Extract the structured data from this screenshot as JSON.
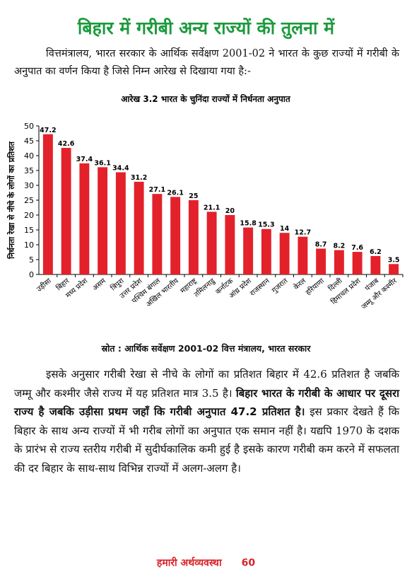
{
  "heading": "बिहार में गरीबी अन्य राज्यों की तुलना में",
  "intro": "वित्तमंत्रालय, भारत सरकार के आर्थिक सर्वेक्षण 2001-02 ने भारत के कुछ राज्यों में गरीबी के अनुपात का वर्णन किया है जिसे निम्न आरेख से दिखाया गया है:-",
  "chart_data": {
    "type": "bar",
    "title": "आरेख 3.2 भारत के चुनिंदा राज्यों में निर्धनता अनुपात",
    "y_label": "निर्धनता रेखा से नीचे के लोगों का प्रतिशत",
    "categories": [
      "उड़ीसा",
      "बिहार",
      "मध्य प्रदेश",
      "असम",
      "त्रिपुरा",
      "उत्तर प्रदेश",
      "पश्चिम बंगाल",
      "अखिल भारतीय",
      "महाराष्ट्र",
      "तमिलनाडु",
      "कर्नाटक",
      "आंध्र प्रदेश",
      "राजस्थान",
      "गुजरात",
      "केरल",
      "हरियाणा",
      "दिल्ली",
      "हिमाचल प्रदेश",
      "पंजाब",
      "जम्मू और कश्मीर"
    ],
    "values": [
      47.2,
      42.6,
      37.4,
      36.1,
      34.4,
      31.2,
      27.1,
      26.1,
      25,
      21.1,
      20,
      15.8,
      15.3,
      14,
      12.7,
      8.7,
      8.2,
      7.6,
      6.2,
      3.5
    ],
    "color": "#e3212b",
    "ylim": [
      0,
      50
    ],
    "yticks": [
      0,
      5,
      10,
      15,
      20,
      25,
      30,
      35,
      40,
      45,
      50
    ]
  },
  "source": "स्रोत : आर्थिक सर्वेक्षण 2001-02 वित्त मंत्रालय, भारत सरकार",
  "body": {
    "part1": "इसके अनुसार गरीबी रेखा से नीचे के लोगों का प्रतिशत बिहार में 42.6 प्रतिशत है जबकि जम्मू और कश्मीर जैसे राज्य में यह प्रतिशत मात्र 3.5 है।",
    "bold": "बिहार भारत के गरीबी के आधार पर दूसरा राज्य है जबकि उड़ीसा प्रथम जहाँ कि गरीबी अनुपात 47.2 प्रतिशत है।",
    "part2": "इस प्रकार देखते हैं कि बिहार के साथ अन्य राज्यों में भी गरीब लोगों का अनुपात एक समान नहीं है। यद्यपि 1970 के दशक के प्रारंभ से राज्य स्तरीय गरीबी में सुदीर्घकालिक कमी हुई है इसके कारण गरीबी कम करने में सफलता की दर बिहार के साथ-साथ विभिन्न राज्यों में अलग-अलग है।"
  },
  "footer": {
    "book": "हमारी अर्थव्यवस्था",
    "page": "60"
  }
}
